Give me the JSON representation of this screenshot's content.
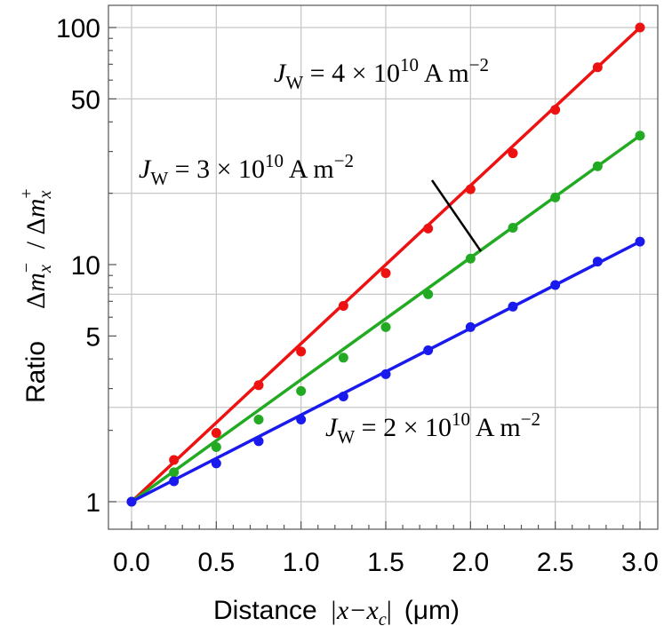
{
  "chart_data": {
    "type": "scatter",
    "xlabel": "Distance",
    "xlabel_math": "|x−x",
    "xlabel_sub": "c",
    "xlabel_units": "(μm)",
    "ylabel": "Ratio",
    "ylabel_math": "Δm",
    "y_scale": "log",
    "xlim": [
      0,
      3.0
    ],
    "ylim": [
      0.8,
      110
    ],
    "x_ticks": [
      "0.0",
      "0.5",
      "1.0",
      "1.5",
      "2.0",
      "2.5",
      "3.0"
    ],
    "x_tick_values": [
      0,
      0.5,
      1.0,
      1.5,
      2.0,
      2.5,
      3.0
    ],
    "y_ticks": [
      "1",
      "5",
      "10",
      "50",
      "100"
    ],
    "y_tick_values": [
      1,
      5,
      10,
      50,
      100
    ],
    "grid": true,
    "series": [
      {
        "name": "J_W = 4 × 10^10 A m^-2",
        "color": "#ee1111",
        "x": [
          0,
          0.25,
          0.5,
          0.75,
          1.0,
          1.25,
          1.5,
          1.75,
          2.0,
          2.25,
          2.5,
          2.75,
          3.0
        ],
        "y": [
          1,
          1.5,
          1.95,
          3.1,
          4.3,
          6.7,
          9.2,
          14.2,
          20.8,
          29.5,
          45,
          68,
          100
        ],
        "fit": [
          [
            0,
            1
          ],
          [
            3.0,
            100
          ]
        ]
      },
      {
        "name": "J_W = 3 × 10^10 A m^-2",
        "color": "#22aa22",
        "x": [
          0,
          0.25,
          0.5,
          0.75,
          1.0,
          1.25,
          1.5,
          1.75,
          2.0,
          2.25,
          2.5,
          2.75,
          3.0
        ],
        "y": [
          1,
          1.33,
          1.7,
          2.22,
          2.93,
          4.05,
          5.45,
          7.5,
          10.6,
          14.3,
          19.2,
          26,
          35
        ],
        "fit": [
          [
            0,
            1
          ],
          [
            3.0,
            35
          ]
        ]
      },
      {
        "name": "J_W = 2 × 10^10 A m^-2",
        "color": "#1a1aee",
        "x": [
          0,
          0.25,
          0.5,
          0.75,
          1.0,
          1.25,
          1.5,
          1.75,
          2.0,
          2.25,
          2.5,
          2.75,
          3.0
        ],
        "y": [
          1,
          1.22,
          1.45,
          1.8,
          2.22,
          2.78,
          3.45,
          4.35,
          5.45,
          6.65,
          8.2,
          10.3,
          12.5
        ],
        "fit": [
          [
            0,
            1
          ],
          [
            3.0,
            12.5
          ]
        ]
      }
    ],
    "annotations": [
      {
        "series": 0,
        "prefix": "J",
        "sub": "W",
        "text": " = 4 × 10",
        "exp": "10",
        "unit": " A m",
        "uexp": "−2"
      },
      {
        "series": 1,
        "prefix": "J",
        "sub": "W",
        "text": " = 3 × 10",
        "exp": "10",
        "unit": " A m",
        "uexp": "−2"
      },
      {
        "series": 2,
        "prefix": "J",
        "sub": "W",
        "text": " = 2 × 10",
        "exp": "10",
        "unit": " A m",
        "uexp": "−2"
      }
    ]
  }
}
